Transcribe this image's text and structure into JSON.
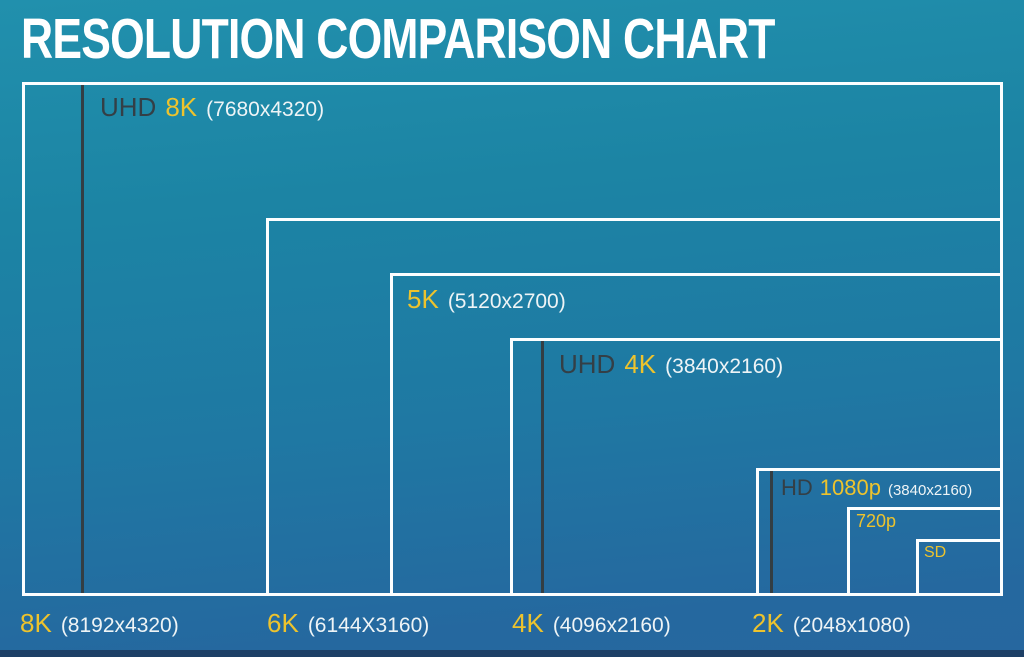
{
  "title": "RESOLUTION COMPARISON CHART",
  "labels": {
    "uhd8k": {
      "prefix": "UHD",
      "name": "8K",
      "dims": "(7680x4320)"
    },
    "k5": {
      "name": "5K",
      "dims": "(5120x2700)"
    },
    "uhd4k": {
      "prefix": "UHD",
      "name": "4K",
      "dims": "(3840x2160)"
    },
    "hd1080": {
      "prefix": "HD",
      "name": "1080p",
      "dims": "(3840x2160)"
    },
    "p720": {
      "name": "720p"
    },
    "sd": {
      "name": "SD"
    },
    "k8": {
      "name": "8K",
      "dims": "(8192x4320)"
    },
    "k6": {
      "name": "6K",
      "dims": "(6144X3160)"
    },
    "k4": {
      "name": "4K",
      "dims": "(4096x2160)"
    },
    "k2": {
      "name": "2K",
      "dims": "(2048x1080)"
    }
  },
  "colors": {
    "background_top": "#2190ad",
    "background_bottom": "#26679f",
    "accent_yellow": "#edc32d",
    "dark_text": "#343f46",
    "light_text": "#eef4f6",
    "box_border": "#fcfeff",
    "footer_bar": "#1d3f66"
  },
  "chart_data": {
    "type": "table",
    "title": "RESOLUTION COMPARISON CHART",
    "note": "Nested rectangles proportional to pixel dimensions, all sharing the bottom-right corner",
    "items": [
      {
        "label": "8K",
        "dimensions": "8192x4320"
      },
      {
        "label": "UHD 8K",
        "dimensions": "7680x4320"
      },
      {
        "label": "6K",
        "dimensions": "6144X3160"
      },
      {
        "label": "5K",
        "dimensions": "5120x2700"
      },
      {
        "label": "4K",
        "dimensions": "4096x2160"
      },
      {
        "label": "UHD 4K",
        "dimensions": "3840x2160"
      },
      {
        "label": "2K",
        "dimensions": "2048x1080"
      },
      {
        "label": "HD 1080p",
        "dimensions": "3840x2160"
      },
      {
        "label": "720p",
        "dimensions": ""
      },
      {
        "label": "SD",
        "dimensions": ""
      }
    ]
  }
}
